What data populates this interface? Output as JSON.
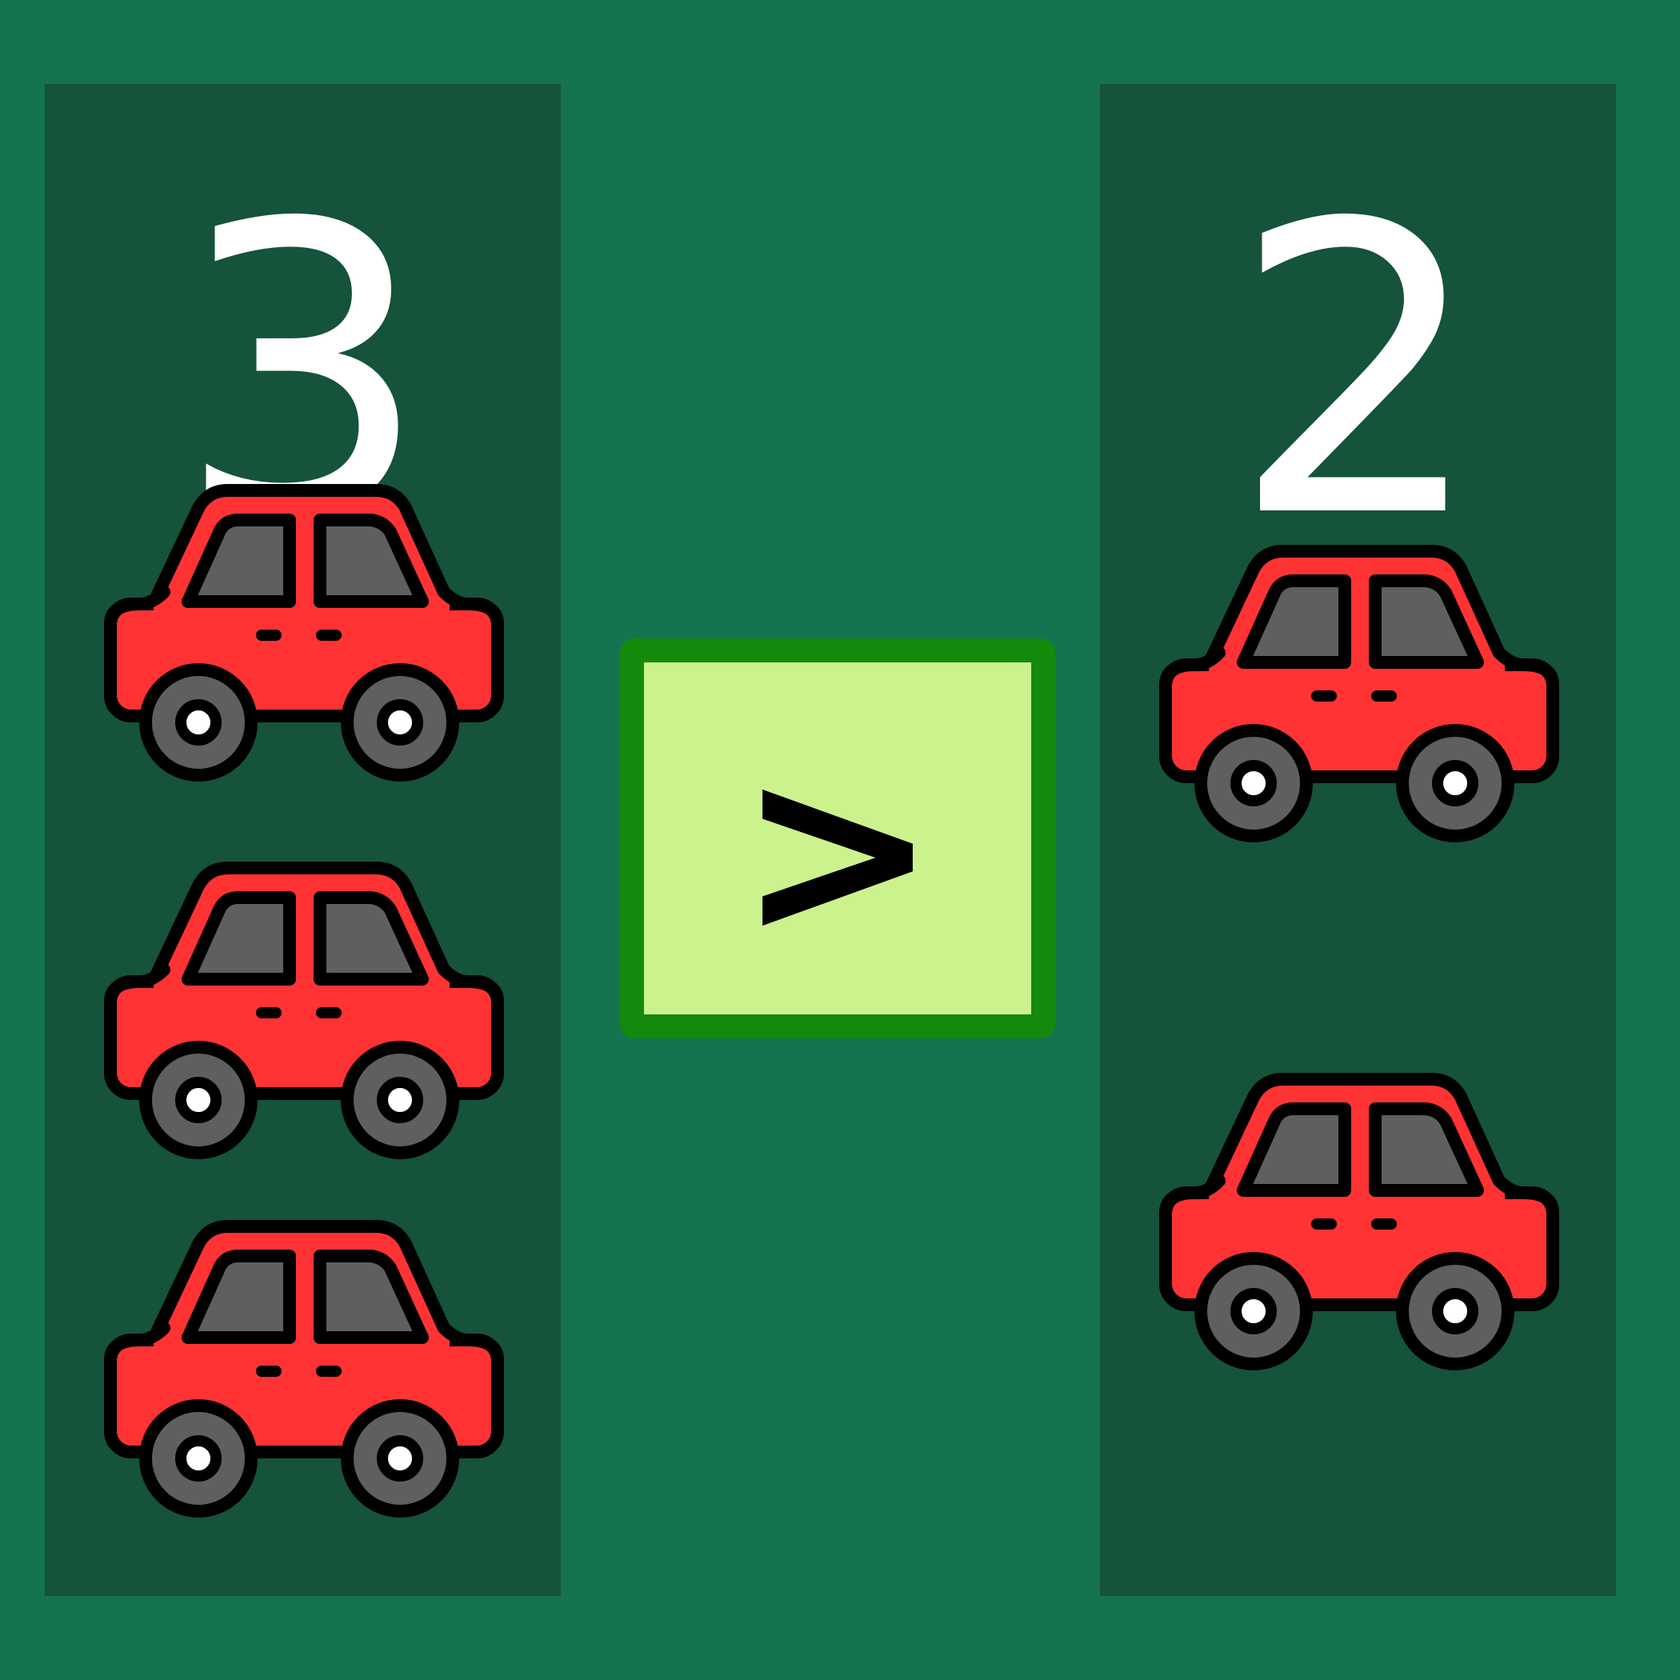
{
  "left": {
    "count": "3",
    "cars": 3,
    "icon": "car-icon"
  },
  "right": {
    "count": "2",
    "cars": 2,
    "icon": "car-icon"
  },
  "comparison": {
    "symbol": ">"
  },
  "colors": {
    "background": "#167350",
    "panel": "#15533a",
    "car_body": "#ff3333",
    "car_window": "#5f5f5f",
    "car_wheel": "#5f5f5f",
    "box_fill": "#ccf28e",
    "box_border": "#138a0b"
  }
}
